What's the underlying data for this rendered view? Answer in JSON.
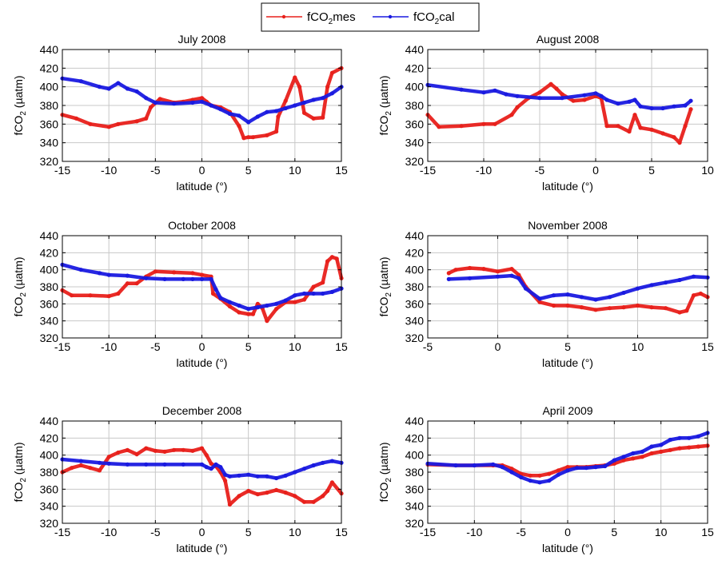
{
  "legend": {
    "entries": [
      {
        "base": "fCO",
        "sub": "2",
        "suffix": "mes",
        "color": "#e8201b"
      },
      {
        "base": "fCO",
        "sub": "2",
        "suffix": "cal",
        "color": "#1a1ae0"
      }
    ]
  },
  "colors": {
    "mes": "#e8201b",
    "cal": "#1a1ae0",
    "grid": "#c8c8c8"
  },
  "chart_data": [
    {
      "type": "line",
      "title": "July 2008",
      "xlabel": "latitude (°)",
      "ylabel": {
        "base": "fCO",
        "sub": "2",
        "suffix": " (µatm)"
      },
      "xlim": [
        -15,
        15
      ],
      "xticks": [
        -15,
        -10,
        -5,
        0,
        5,
        10,
        15
      ],
      "ylim": [
        320,
        440
      ],
      "yticks": [
        320,
        340,
        360,
        380,
        400,
        420,
        440
      ],
      "grid": true,
      "series": [
        {
          "name": "fCO2mes",
          "x": [
            -15,
            -13.5,
            -12,
            -10,
            -9,
            -7,
            -6,
            -5.5,
            -4.5,
            -3,
            -2,
            -1,
            0,
            0.5,
            1,
            2,
            3,
            4,
            4.5,
            5,
            5.5,
            7,
            8,
            8.2,
            9,
            10,
            10.5,
            11,
            12,
            13,
            13.5,
            14,
            15
          ],
          "y": [
            370,
            366,
            360,
            357,
            360,
            363,
            366,
            378,
            387,
            383,
            384,
            386,
            388,
            384,
            380,
            378,
            373,
            358,
            345,
            346,
            346,
            348,
            352,
            368,
            385,
            410,
            400,
            372,
            366,
            367,
            400,
            415,
            420
          ]
        },
        {
          "name": "fCO2cal",
          "x": [
            -15,
            -13,
            -11,
            -10,
            -9,
            -8,
            -7,
            -6,
            -5,
            -3,
            -1,
            0,
            1,
            2,
            3,
            4,
            5,
            6,
            7,
            8,
            9,
            10,
            11,
            12,
            13,
            14,
            15
          ],
          "y": [
            409,
            406,
            400,
            398,
            404,
            398,
            395,
            388,
            383,
            382,
            383,
            384,
            380,
            376,
            371,
            369,
            362,
            368,
            373,
            374,
            377,
            380,
            383,
            386,
            388,
            393,
            400
          ]
        }
      ]
    },
    {
      "type": "line",
      "title": "August 2008",
      "xlabel": "latitude (°)",
      "ylabel": {
        "base": "fCO",
        "sub": "2",
        "suffix": " (µatm)"
      },
      "xlim": [
        -15,
        10
      ],
      "xticks": [
        -15,
        -10,
        -5,
        0,
        5,
        10
      ],
      "ylim": [
        320,
        440
      ],
      "yticks": [
        320,
        340,
        360,
        380,
        400,
        420,
        440
      ],
      "grid": true,
      "series": [
        {
          "name": "fCO2mes",
          "x": [
            -15,
            -14,
            -12,
            -10,
            -9,
            -7.5,
            -7,
            -6,
            -5,
            -4,
            -3.5,
            -3,
            -2,
            -1,
            0,
            0.5,
            1,
            2,
            3,
            3.5,
            4,
            5,
            6,
            7,
            7.5,
            8,
            8.5
          ],
          "y": [
            370,
            357,
            358,
            360,
            360,
            370,
            378,
            388,
            394,
            403,
            398,
            392,
            385,
            386,
            390,
            388,
            358,
            358,
            352,
            370,
            356,
            354,
            350,
            346,
            340,
            358,
            376
          ]
        },
        {
          "name": "fCO2cal",
          "x": [
            -15,
            -12,
            -10,
            -9,
            -8,
            -7,
            -5,
            -3,
            -1,
            0,
            0.5,
            1,
            2,
            3,
            3.5,
            4,
            5,
            6,
            7,
            8,
            8.5
          ],
          "y": [
            402,
            397,
            394,
            396,
            392,
            390,
            388,
            388,
            391,
            393,
            390,
            386,
            382,
            384,
            386,
            379,
            377,
            377,
            379,
            380,
            385
          ]
        }
      ]
    },
    {
      "type": "line",
      "title": "October 2008",
      "xlabel": "latitude (°)",
      "ylabel": {
        "base": "fCO",
        "sub": "2",
        "suffix": " (µatm)"
      },
      "xlim": [
        -15,
        15
      ],
      "xticks": [
        -15,
        -10,
        -5,
        0,
        5,
        10,
        15
      ],
      "ylim": [
        320,
        440
      ],
      "yticks": [
        320,
        340,
        360,
        380,
        400,
        420,
        440
      ],
      "grid": true,
      "series": [
        {
          "name": "fCO2mes",
          "x": [
            -15,
            -14,
            -12,
            -10,
            -9,
            -8,
            -7,
            -6,
            -5,
            -3,
            -1,
            0,
            1,
            1.2,
            2,
            3,
            4,
            5,
            5.5,
            6,
            6.5,
            7,
            8,
            9,
            10,
            11,
            12,
            13,
            13.5,
            14,
            14.5,
            15
          ],
          "y": [
            376,
            370,
            370,
            369,
            372,
            384,
            384,
            392,
            398,
            397,
            396,
            394,
            392,
            372,
            366,
            357,
            350,
            348,
            348,
            360,
            355,
            340,
            354,
            362,
            362,
            365,
            380,
            385,
            410,
            415,
            413,
            390
          ]
        },
        {
          "name": "fCO2cal",
          "x": [
            -15,
            -13,
            -11,
            -10,
            -8,
            -6,
            -4,
            -2,
            -1,
            0,
            1,
            1.5,
            2,
            3,
            4,
            5,
            6,
            7,
            8,
            9,
            10,
            11,
            12,
            13,
            14,
            15
          ],
          "y": [
            406,
            400,
            396,
            394,
            393,
            390,
            389,
            389,
            389,
            389,
            389,
            377,
            367,
            362,
            358,
            354,
            356,
            358,
            360,
            364,
            370,
            372,
            372,
            372,
            374,
            378
          ]
        }
      ]
    },
    {
      "type": "line",
      "title": "November 2008",
      "xlabel": "latitude (°)",
      "ylabel": {
        "base": "fCO",
        "sub": "2",
        "suffix": " (µatm)"
      },
      "xlim": [
        -5,
        15
      ],
      "xticks": [
        -5,
        0,
        5,
        10,
        15
      ],
      "ylim": [
        320,
        440
      ],
      "yticks": [
        320,
        340,
        360,
        380,
        400,
        420,
        440
      ],
      "grid": true,
      "series": [
        {
          "name": "fCO2mes",
          "x": [
            -3.5,
            -3,
            -2,
            -1,
            0,
            1,
            1.5,
            2,
            3,
            4,
            5,
            6,
            7,
            8,
            9,
            10,
            11,
            12,
            13,
            13.5,
            14,
            14.5,
            15
          ],
          "y": [
            396,
            400,
            402,
            401,
            398,
            401,
            394,
            380,
            362,
            358,
            358,
            356,
            353,
            355,
            356,
            358,
            356,
            355,
            350,
            352,
            370,
            372,
            368
          ]
        },
        {
          "name": "fCO2cal",
          "x": [
            -3.5,
            -2,
            0,
            1,
            1.5,
            2,
            3,
            4,
            5,
            6,
            7,
            8,
            9,
            10,
            11,
            12,
            13,
            14,
            15
          ],
          "y": [
            389,
            390,
            392,
            393,
            390,
            378,
            366,
            370,
            371,
            368,
            365,
            368,
            373,
            378,
            382,
            385,
            388,
            392,
            391
          ]
        }
      ]
    },
    {
      "type": "line",
      "title": "December 2008",
      "xlabel": "latitude (°)",
      "ylabel": {
        "base": "fCO",
        "sub": "2",
        "suffix": " (µatm)"
      },
      "xlim": [
        -15,
        15
      ],
      "xticks": [
        -15,
        -10,
        -5,
        0,
        5,
        10,
        15
      ],
      "ylim": [
        320,
        440
      ],
      "yticks": [
        320,
        340,
        360,
        380,
        400,
        420,
        440
      ],
      "grid": true,
      "series": [
        {
          "name": "fCO2mes",
          "x": [
            -15,
            -14,
            -13,
            -12,
            -11,
            -10,
            -9,
            -8,
            -7,
            -6,
            -5,
            -4,
            -3,
            -2,
            -1,
            0,
            0.5,
            1,
            1.5,
            2,
            2.5,
            3,
            4,
            5,
            6,
            7,
            8,
            9,
            10,
            11,
            12,
            13,
            13.5,
            14,
            15
          ],
          "y": [
            380,
            385,
            388,
            385,
            382,
            398,
            403,
            406,
            401,
            408,
            405,
            404,
            406,
            406,
            405,
            408,
            400,
            390,
            387,
            380,
            370,
            342,
            352,
            358,
            354,
            356,
            359,
            356,
            352,
            345,
            345,
            352,
            358,
            368,
            355
          ]
        },
        {
          "name": "fCO2cal",
          "x": [
            -15,
            -13,
            -11,
            -10,
            -8,
            -6,
            -4,
            -2,
            0,
            0.5,
            1,
            1.5,
            2,
            2.5,
            3,
            4,
            5,
            6,
            7,
            8,
            9,
            10,
            11,
            12,
            13,
            14,
            15
          ],
          "y": [
            395,
            393,
            391,
            390,
            389,
            389,
            389,
            389,
            389,
            386,
            384,
            389,
            386,
            377,
            375,
            376,
            377,
            375,
            375,
            373,
            376,
            380,
            384,
            388,
            391,
            393,
            391
          ]
        }
      ]
    },
    {
      "type": "line",
      "title": "April 2009",
      "xlabel": "latitude (°)",
      "ylabel": {
        "base": "fCO",
        "sub": "2",
        "suffix": " (µatm)"
      },
      "xlim": [
        -15,
        15
      ],
      "xticks": [
        -15,
        -10,
        -5,
        0,
        5,
        10,
        15
      ],
      "ylim": [
        320,
        440
      ],
      "yticks": [
        320,
        340,
        360,
        380,
        400,
        420,
        440
      ],
      "grid": true,
      "series": [
        {
          "name": "fCO2mes",
          "x": [
            -15,
            -12,
            -10,
            -8,
            -7,
            -6,
            -5,
            -4,
            -3,
            -2,
            -1,
            0,
            1,
            2,
            3,
            4,
            5,
            6,
            7,
            8,
            9,
            10,
            11,
            12,
            13,
            14,
            15
          ],
          "y": [
            389,
            388,
            388,
            388,
            388,
            384,
            378,
            376,
            376,
            378,
            382,
            386,
            386,
            386,
            387,
            388,
            390,
            394,
            396,
            398,
            402,
            404,
            406,
            408,
            409,
            410,
            411
          ]
        },
        {
          "name": "fCO2cal",
          "x": [
            -15,
            -12,
            -10,
            -8,
            -7,
            -6,
            -5,
            -4,
            -3,
            -2,
            -1,
            0,
            1,
            2,
            3,
            4,
            5,
            6,
            7,
            8,
            9,
            10,
            11,
            12,
            13,
            14,
            15
          ],
          "y": [
            390,
            388,
            388,
            389,
            386,
            380,
            374,
            370,
            368,
            370,
            377,
            382,
            385,
            385,
            386,
            387,
            394,
            398,
            402,
            404,
            410,
            412,
            418,
            420,
            420,
            422,
            426
          ]
        }
      ]
    }
  ]
}
